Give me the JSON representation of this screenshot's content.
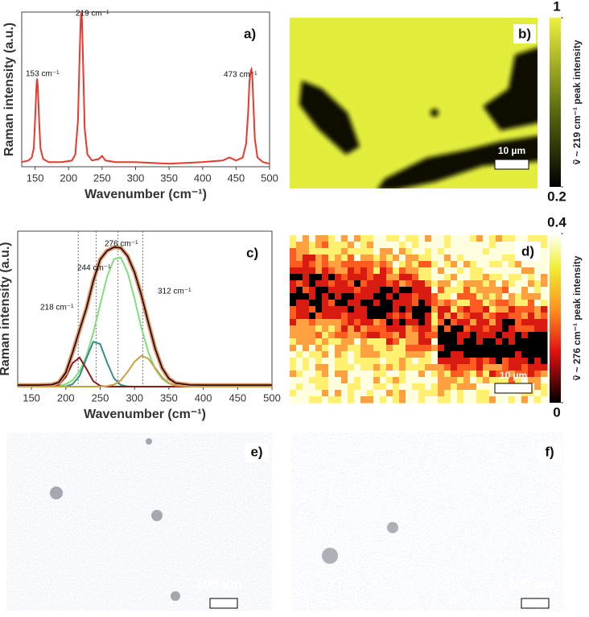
{
  "chart_data": [
    {
      "type": "line",
      "panel_label": "a)",
      "y_label": "Raman intensity (a.u.)",
      "x_label": "Wavenumber (cm⁻¹)",
      "xlim": [
        130,
        500
      ],
      "xticks": [
        150,
        200,
        250,
        300,
        350,
        400,
        450,
        500
      ],
      "ylim": [
        0,
        1
      ],
      "x": [
        130,
        140,
        145,
        148,
        150,
        152,
        153,
        154,
        156,
        158,
        162,
        170,
        190,
        205,
        210,
        214,
        216,
        218,
        219,
        220,
        222,
        224,
        228,
        235,
        245,
        250,
        255,
        270,
        300,
        350,
        400,
        430,
        440,
        450,
        460,
        465,
        468,
        470,
        472,
        473,
        474,
        476,
        478,
        482,
        490,
        500
      ],
      "series": [
        {
          "color": "#e8392e",
          "values": [
            0.03,
            0.04,
            0.06,
            0.12,
            0.3,
            0.52,
            0.57,
            0.52,
            0.3,
            0.12,
            0.05,
            0.03,
            0.03,
            0.04,
            0.08,
            0.3,
            0.65,
            0.95,
            1.0,
            0.95,
            0.6,
            0.25,
            0.08,
            0.04,
            0.05,
            0.07,
            0.04,
            0.03,
            0.03,
            0.02,
            0.03,
            0.04,
            0.06,
            0.04,
            0.06,
            0.15,
            0.35,
            0.55,
            0.62,
            0.63,
            0.6,
            0.4,
            0.18,
            0.06,
            0.03,
            0.02
          ]
        }
      ],
      "annotations": [
        "153 cm⁻¹",
        "219 cm⁻¹",
        "473 cm⁻¹"
      ]
    },
    {
      "type": "line",
      "panel_label": "c)",
      "y_label": "Raman intensity (a.u.)",
      "x_label": "Wavenumber (cm⁻¹)",
      "xlim": [
        130,
        500
      ],
      "xticks": [
        150,
        200,
        250,
        300,
        350,
        400,
        450,
        500
      ],
      "ylim": [
        0,
        1
      ],
      "x": [
        130,
        160,
        180,
        190,
        200,
        210,
        220,
        230,
        240,
        250,
        260,
        270,
        280,
        290,
        300,
        310,
        320,
        330,
        340,
        350,
        360,
        380,
        400,
        450,
        500
      ],
      "series": [
        {
          "color": "#7ee07a",
          "values": [
            0,
            0,
            0.002,
            0.005,
            0.016,
            0.042,
            0.098,
            0.197,
            0.345,
            0.528,
            0.705,
            0.82,
            0.831,
            0.734,
            0.566,
            0.38,
            0.222,
            0.114,
            0.05,
            0.02,
            0.007,
            0.001,
            0,
            0,
            0
          ]
        },
        {
          "color": "#3a8a8a",
          "values": [
            0,
            0,
            0,
            0,
            0.002,
            0.016,
            0.069,
            0.182,
            0.288,
            0.274,
            0.156,
            0.054,
            0.011,
            0.001,
            0,
            0,
            0,
            0,
            0,
            0,
            0,
            0,
            0,
            0,
            0
          ]
        },
        {
          "color": "#8b1a1a",
          "values": [
            0,
            0,
            0.001,
            0.013,
            0.062,
            0.152,
            0.187,
            0.115,
            0.035,
            0.005,
            0,
            0,
            0,
            0,
            0,
            0,
            0,
            0,
            0,
            0,
            0,
            0,
            0,
            0,
            0
          ]
        },
        {
          "color": "#c8a040",
          "values": [
            0,
            0,
            0,
            0,
            0,
            0,
            0,
            0,
            0,
            0.001,
            0.003,
            0.013,
            0.041,
            0.095,
            0.16,
            0.199,
            0.181,
            0.121,
            0.06,
            0.022,
            0.006,
            0,
            0,
            0,
            0
          ]
        },
        {
          "color": "#000000",
          "halo_color": "#e89060",
          "values": [
            0.01,
            0.01,
            0.013,
            0.028,
            0.09,
            0.22,
            0.364,
            0.504,
            0.678,
            0.818,
            0.874,
            0.897,
            0.893,
            0.84,
            0.736,
            0.589,
            0.413,
            0.245,
            0.12,
            0.052,
            0.023,
            0.011,
            0.01,
            0.01,
            0.01
          ]
        }
      ],
      "reference_lines": [
        218,
        244,
        276,
        312
      ],
      "annotations": [
        "218 cm⁻¹",
        "244 cm⁻¹",
        "276 cm⁻¹",
        "312 cm⁻¹"
      ]
    }
  ],
  "maps": [
    {
      "panel_label": "b)",
      "clim": [
        0.2,
        1
      ],
      "cticks": [
        0.2,
        1
      ],
      "colorbar_label": "ṽ ~ 219 cm⁻¹ peak intensity",
      "scale_bar": "10 µm"
    },
    {
      "panel_label": "d)",
      "clim": [
        0,
        0.4
      ],
      "cticks": [
        0,
        0.4
      ],
      "colorbar_label": "ṽ ~ 276 cm⁻¹ peak intensity",
      "scale_bar": "10 µm"
    }
  ],
  "micrographs": [
    {
      "panel_label": "e)",
      "scale_bar": "100 µm"
    },
    {
      "panel_label": "f)",
      "scale_bar": "100 µm"
    }
  ]
}
